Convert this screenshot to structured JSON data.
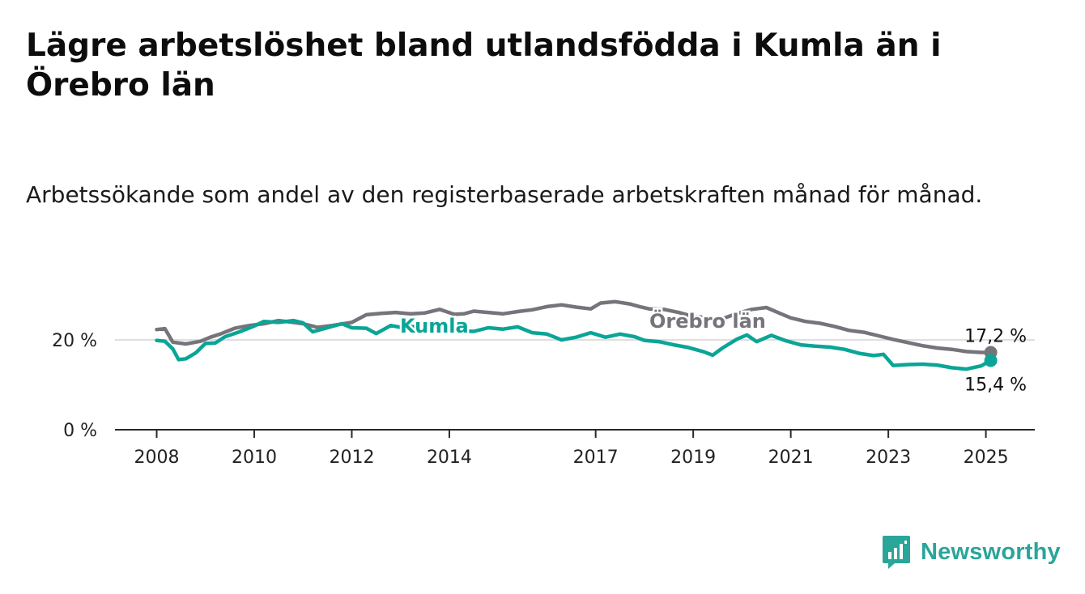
{
  "chart_data": {
    "type": "line",
    "title": "Lägre arbetslöshet bland utlandsfödda i Kumla än i Örebro län",
    "subtitle": "Arbetssökande som andel av den registerbaserade arbetskraften månad för månad.",
    "ylim": [
      0,
      30
    ],
    "y_ticks": [
      {
        "value": 0,
        "label": "0 %"
      },
      {
        "value": 20,
        "label": "20 %"
      }
    ],
    "x_ticks": [
      2008,
      2010,
      2012,
      2014,
      2017,
      2019,
      2021,
      2023,
      2025
    ],
    "grid": true,
    "series": [
      {
        "name": "Örebro län",
        "color": "#77737b",
        "end_label": "17,2 %",
        "points": [
          [
            2008.0,
            22.3
          ],
          [
            2008.17,
            22.5
          ],
          [
            2008.33,
            19.5
          ],
          [
            2008.6,
            19.1
          ],
          [
            2008.9,
            19.7
          ],
          [
            2009.1,
            20.6
          ],
          [
            2009.3,
            21.3
          ],
          [
            2009.6,
            22.6
          ],
          [
            2009.9,
            23.2
          ],
          [
            2010.2,
            23.6
          ],
          [
            2010.5,
            24.3
          ],
          [
            2010.8,
            23.9
          ],
          [
            2011.0,
            23.6
          ],
          [
            2011.3,
            22.8
          ],
          [
            2011.6,
            23.2
          ],
          [
            2012.0,
            23.9
          ],
          [
            2012.3,
            25.6
          ],
          [
            2012.6,
            25.9
          ],
          [
            2012.9,
            26.1
          ],
          [
            2013.2,
            25.8
          ],
          [
            2013.5,
            26.0
          ],
          [
            2013.8,
            26.8
          ],
          [
            2014.1,
            25.7
          ],
          [
            2014.3,
            25.8
          ],
          [
            2014.5,
            26.4
          ],
          [
            2014.8,
            26.1
          ],
          [
            2015.1,
            25.8
          ],
          [
            2015.4,
            26.3
          ],
          [
            2015.7,
            26.7
          ],
          [
            2016.0,
            27.4
          ],
          [
            2016.3,
            27.8
          ],
          [
            2016.6,
            27.3
          ],
          [
            2016.9,
            26.9
          ],
          [
            2017.1,
            28.2
          ],
          [
            2017.4,
            28.5
          ],
          [
            2017.7,
            28.0
          ],
          [
            2017.9,
            27.4
          ],
          [
            2018.1,
            26.9
          ],
          [
            2018.4,
            26.8
          ],
          [
            2018.7,
            26.1
          ],
          [
            2019.0,
            25.2
          ],
          [
            2019.3,
            25.0
          ],
          [
            2019.6,
            24.7
          ],
          [
            2019.9,
            25.9
          ],
          [
            2020.2,
            26.8
          ],
          [
            2020.5,
            27.2
          ],
          [
            2020.8,
            25.8
          ],
          [
            2021.0,
            24.9
          ],
          [
            2021.3,
            24.1
          ],
          [
            2021.6,
            23.7
          ],
          [
            2021.9,
            23.0
          ],
          [
            2022.2,
            22.1
          ],
          [
            2022.5,
            21.7
          ],
          [
            2022.8,
            20.9
          ],
          [
            2023.1,
            20.1
          ],
          [
            2023.4,
            19.4
          ],
          [
            2023.7,
            18.7
          ],
          [
            2024.0,
            18.2
          ],
          [
            2024.3,
            17.9
          ],
          [
            2024.6,
            17.4
          ],
          [
            2024.9,
            17.2
          ],
          [
            2025.1,
            17.2
          ]
        ]
      },
      {
        "name": "Kumla",
        "color": "#0aa596",
        "end_label": "15,4 %",
        "points": [
          [
            2008.0,
            19.9
          ],
          [
            2008.17,
            19.7
          ],
          [
            2008.33,
            18.0
          ],
          [
            2008.45,
            15.6
          ],
          [
            2008.6,
            15.8
          ],
          [
            2008.8,
            17.1
          ],
          [
            2009.0,
            19.2
          ],
          [
            2009.2,
            19.3
          ],
          [
            2009.4,
            20.7
          ],
          [
            2009.7,
            21.8
          ],
          [
            2010.0,
            23.1
          ],
          [
            2010.2,
            24.1
          ],
          [
            2010.5,
            23.9
          ],
          [
            2010.8,
            24.3
          ],
          [
            2011.0,
            23.8
          ],
          [
            2011.2,
            21.8
          ],
          [
            2011.5,
            22.7
          ],
          [
            2011.8,
            23.6
          ],
          [
            2012.0,
            22.7
          ],
          [
            2012.3,
            22.6
          ],
          [
            2012.5,
            21.4
          ],
          [
            2012.8,
            23.2
          ],
          [
            2013.0,
            22.8
          ],
          [
            2013.3,
            23.0
          ],
          [
            2013.6,
            22.9
          ],
          [
            2013.9,
            22.5
          ],
          [
            2014.2,
            22.0
          ],
          [
            2014.5,
            21.9
          ],
          [
            2014.8,
            22.7
          ],
          [
            2015.1,
            22.4
          ],
          [
            2015.4,
            22.9
          ],
          [
            2015.7,
            21.6
          ],
          [
            2016.0,
            21.3
          ],
          [
            2016.3,
            20.0
          ],
          [
            2016.6,
            20.6
          ],
          [
            2016.9,
            21.6
          ],
          [
            2017.2,
            20.6
          ],
          [
            2017.5,
            21.3
          ],
          [
            2017.8,
            20.7
          ],
          [
            2018.0,
            19.9
          ],
          [
            2018.3,
            19.6
          ],
          [
            2018.6,
            18.9
          ],
          [
            2018.9,
            18.3
          ],
          [
            2019.2,
            17.4
          ],
          [
            2019.4,
            16.6
          ],
          [
            2019.6,
            18.2
          ],
          [
            2019.9,
            20.2
          ],
          [
            2020.1,
            21.1
          ],
          [
            2020.3,
            19.6
          ],
          [
            2020.6,
            21.0
          ],
          [
            2020.9,
            19.8
          ],
          [
            2021.2,
            18.9
          ],
          [
            2021.5,
            18.6
          ],
          [
            2021.8,
            18.4
          ],
          [
            2022.1,
            17.9
          ],
          [
            2022.4,
            17.0
          ],
          [
            2022.7,
            16.5
          ],
          [
            2022.9,
            16.8
          ],
          [
            2023.1,
            14.3
          ],
          [
            2023.4,
            14.5
          ],
          [
            2023.7,
            14.6
          ],
          [
            2024.0,
            14.4
          ],
          [
            2024.3,
            13.8
          ],
          [
            2024.6,
            13.5
          ],
          [
            2024.9,
            14.2
          ],
          [
            2025.1,
            15.4
          ]
        ]
      }
    ]
  },
  "brand": {
    "name": "Newsworthy",
    "color": "#2aa59a"
  }
}
